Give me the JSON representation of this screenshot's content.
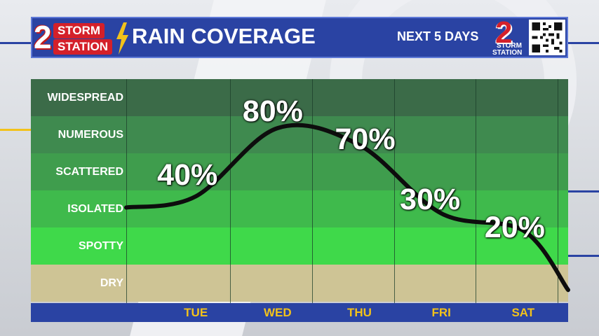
{
  "header": {
    "logo_number": "2",
    "logo_word_1": "STORM",
    "logo_word_2": "STATION",
    "title": "RAIN COVERAGE",
    "subtitle": "NEXT 5 DAYS",
    "right_logo_number": "2",
    "right_logo_word_1": "STORM",
    "right_logo_word_2": "STATION"
  },
  "colors": {
    "header_bg": "#2a43a3",
    "tick_text": "#f2c21b",
    "brand_red": "#d4202a"
  },
  "chart_data": {
    "type": "line",
    "title": "RAIN COVERAGE",
    "subtitle": "NEXT 5 DAYS",
    "categories": [
      "TUE",
      "WED",
      "THU",
      "FRI",
      "SAT"
    ],
    "y_categories": [
      "WIDESPREAD",
      "NUMEROUS",
      "SCATTERED",
      "ISOLATED",
      "SPOTTY",
      "DRY"
    ],
    "band_colors": [
      "#3b6b48",
      "#3f8a4f",
      "#3f9d4d",
      "#3fba4c",
      "#3fd94a",
      "#cec495"
    ],
    "series": [
      {
        "values": [
          40,
          80,
          70,
          30,
          20
        ],
        "labels": [
          "40%",
          "80%",
          "70%",
          "30%",
          "20%"
        ]
      }
    ],
    "ylim": [
      0,
      100
    ]
  }
}
